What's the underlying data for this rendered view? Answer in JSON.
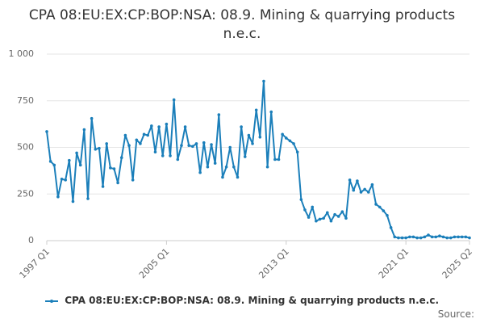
{
  "colors": {
    "series": "#1b7fba"
  },
  "legend": {
    "label": "CPA 08:EU:EX:CP:BOP:NSA: 08.9. Mining & quarrying products n.e.c."
  },
  "credits": {
    "source": "Source:"
  },
  "chart_data": {
    "type": "line",
    "title": "CPA 08:EU:EX:CP:BOP:NSA: 08.9. Mining & quarrying products n.e.c.",
    "xlabel": "",
    "ylabel": "",
    "ylim": [
      0,
      1000
    ],
    "yticks": [
      0,
      250,
      500,
      750,
      1000
    ],
    "ytick_labels": [
      "0",
      "250",
      "500",
      "750",
      "1 000"
    ],
    "x_start": "1997 Q1",
    "x_end": "2025 Q2",
    "xtick_labels": [
      "1997 Q1",
      "2005 Q1",
      "2013 Q1",
      "2021 Q1",
      "2025 Q2"
    ],
    "legend_position": "bottom",
    "grid": true,
    "series": [
      {
        "name": "CPA 08:EU:EX:CP:BOP:NSA: 08.9. Mining & quarrying products n.e.c.",
        "x": [
          "1997 Q1",
          "1997 Q2",
          "1997 Q3",
          "1997 Q4",
          "1998 Q1",
          "1998 Q2",
          "1998 Q3",
          "1998 Q4",
          "1999 Q1",
          "1999 Q2",
          "1999 Q3",
          "1999 Q4",
          "2000 Q1",
          "2000 Q2",
          "2000 Q3",
          "2000 Q4",
          "2001 Q1",
          "2001 Q2",
          "2001 Q3",
          "2001 Q4",
          "2002 Q1",
          "2002 Q2",
          "2002 Q3",
          "2002 Q4",
          "2003 Q1",
          "2003 Q2",
          "2003 Q3",
          "2003 Q4",
          "2004 Q1",
          "2004 Q2",
          "2004 Q3",
          "2004 Q4",
          "2005 Q1",
          "2005 Q2",
          "2005 Q3",
          "2005 Q4",
          "2006 Q1",
          "2006 Q2",
          "2006 Q3",
          "2006 Q4",
          "2007 Q1",
          "2007 Q2",
          "2007 Q3",
          "2007 Q4",
          "2008 Q1",
          "2008 Q2",
          "2008 Q3",
          "2008 Q4",
          "2009 Q1",
          "2009 Q2",
          "2009 Q3",
          "2009 Q4",
          "2010 Q1",
          "2010 Q2",
          "2010 Q3",
          "2010 Q4",
          "2011 Q1",
          "2011 Q2",
          "2011 Q3",
          "2011 Q4",
          "2012 Q1",
          "2012 Q2",
          "2012 Q3",
          "2012 Q4",
          "2013 Q1",
          "2013 Q2",
          "2013 Q3",
          "2013 Q4",
          "2014 Q1",
          "2014 Q2",
          "2014 Q3",
          "2014 Q4",
          "2015 Q1",
          "2015 Q2",
          "2015 Q3",
          "2015 Q4",
          "2016 Q1",
          "2016 Q2",
          "2016 Q3",
          "2016 Q4",
          "2017 Q1",
          "2017 Q2",
          "2017 Q3",
          "2017 Q4",
          "2018 Q1",
          "2018 Q2",
          "2018 Q3",
          "2018 Q4",
          "2019 Q1",
          "2019 Q2",
          "2019 Q3",
          "2019 Q4",
          "2020 Q1",
          "2020 Q2",
          "2020 Q3",
          "2020 Q4",
          "2021 Q1",
          "2021 Q2",
          "2021 Q3",
          "2021 Q4",
          "2022 Q1",
          "2022 Q2",
          "2022 Q3",
          "2022 Q4",
          "2023 Q1",
          "2023 Q2",
          "2023 Q3",
          "2023 Q4",
          "2024 Q1",
          "2024 Q2",
          "2024 Q3",
          "2024 Q4",
          "2025 Q1",
          "2025 Q2"
        ],
        "values": [
          585,
          425,
          405,
          235,
          330,
          325,
          430,
          210,
          470,
          405,
          595,
          225,
          655,
          490,
          495,
          290,
          520,
          390,
          385,
          310,
          445,
          565,
          510,
          325,
          540,
          520,
          570,
          565,
          615,
          475,
          610,
          455,
          625,
          455,
          755,
          435,
          510,
          610,
          510,
          505,
          520,
          365,
          525,
          395,
          515,
          415,
          675,
          340,
          395,
          500,
          395,
          340,
          610,
          450,
          565,
          520,
          700,
          555,
          855,
          395,
          690,
          435,
          435,
          570,
          550,
          535,
          520,
          475,
          220,
          165,
          125,
          180,
          105,
          115,
          120,
          150,
          105,
          140,
          130,
          155,
          120,
          325,
          270,
          320,
          260,
          275,
          260,
          300,
          195,
          180,
          160,
          135,
          70,
          20,
          15,
          15,
          15,
          20,
          20,
          15,
          15,
          20,
          30,
          20,
          20,
          25,
          20,
          15,
          15,
          20,
          20,
          20,
          20,
          15
        ]
      }
    ]
  }
}
